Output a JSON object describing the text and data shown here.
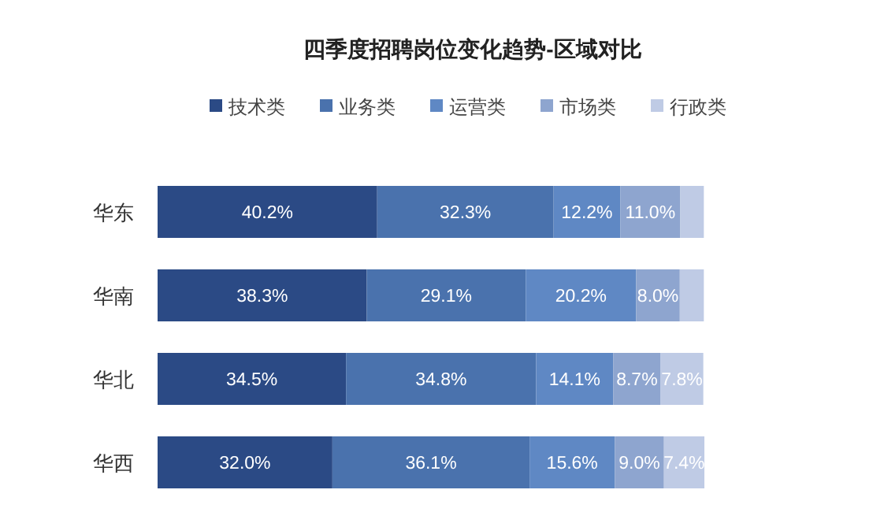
{
  "chart_data": {
    "type": "bar",
    "orientation": "horizontal",
    "stacked": true,
    "title": "四季度招聘岗位变化趋势-区域对比",
    "legend": "top",
    "categories": [
      "华东",
      "华南",
      "华北",
      "华西"
    ],
    "series": [
      {
        "name": "技术类",
        "color": "#2b4a85",
        "values": [
          40.2,
          38.3,
          34.5,
          32.0
        ],
        "value_labels": [
          "40.2%",
          "38.3%",
          "34.5%",
          "32.0%"
        ]
      },
      {
        "name": "业务类",
        "color": "#4a72ad",
        "values": [
          32.3,
          29.1,
          34.8,
          36.1
        ],
        "value_labels": [
          "32.3%",
          "29.1%",
          "34.8%",
          "36.1%"
        ]
      },
      {
        "name": "运营类",
        "color": "#5f88c4",
        "values": [
          12.2,
          20.2,
          14.1,
          15.6
        ],
        "value_labels": [
          "12.2%",
          "20.2%",
          "14.1%",
          "15.6%"
        ]
      },
      {
        "name": "市场类",
        "color": "#8ea5cf",
        "values": [
          11.0,
          8.0,
          8.7,
          9.0
        ],
        "value_labels": [
          "11.0%",
          "8.0%",
          "8.7%",
          "9.0%"
        ]
      },
      {
        "name": "行政类",
        "color": "#bfcbe5",
        "values": [
          4.3,
          4.4,
          7.8,
          7.4
        ],
        "value_labels": [
          null,
          null,
          "7.8%",
          "7.4%"
        ]
      }
    ]
  }
}
